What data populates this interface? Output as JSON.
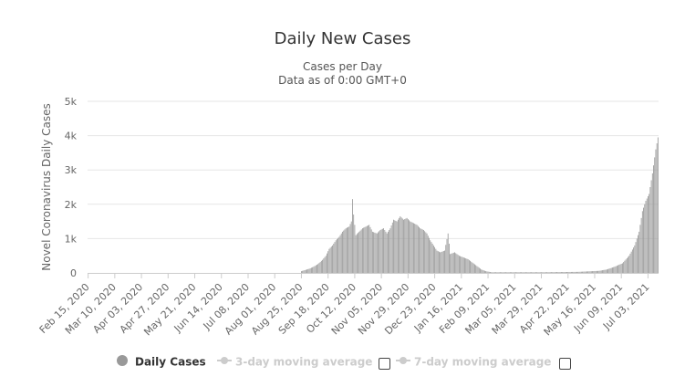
{
  "title": "Daily New Cases",
  "subtitle_line1": "Cases per Day",
  "subtitle_line2": "Data as of 0:00 GMT+0",
  "colors": {
    "bars": "#999999",
    "grid": "#e6e6e6",
    "axis_text": "#666666",
    "disabled": "#cccccc"
  },
  "legend": {
    "daily": "Daily Cases",
    "ma3": "3-day moving average",
    "ma7": "7-day moving average"
  },
  "chart_data": {
    "type": "bar",
    "title": "Daily New Cases",
    "subtitle": "Cases per Day / Data as of 0:00 GMT+0",
    "xlabel": "",
    "ylabel": "Novel Coronavirus Daily Cases",
    "ylim": [
      0,
      5000
    ],
    "yticks": [
      0,
      1000,
      2000,
      3000,
      4000,
      5000
    ],
    "ytick_labels": [
      "0",
      "1k",
      "2k",
      "3k",
      "4k",
      "5k"
    ],
    "x_tick_labels": [
      "Feb 15, 2020",
      "Mar 10, 2020",
      "Apr 03, 2020",
      "Apr 27, 2020",
      "May 21, 2020",
      "Jun 14, 2020",
      "Jul 08, 2020",
      "Aug 01, 2020",
      "Aug 25, 2020",
      "Sep 18, 2020",
      "Oct 12, 2020",
      "Nov 05, 2020",
      "Nov 29, 2020",
      "Dec 23, 2020",
      "Jan 16, 2021",
      "Feb 09, 2021",
      "Mar 05, 2021",
      "Mar 29, 2021",
      "Apr 22, 2021",
      "May 16, 2021",
      "Jun 09, 2021",
      "Jul 03, 2021"
    ],
    "x_start": "Feb 15, 2020",
    "x_end": "Jul 12, 2021",
    "grid": true,
    "legend_position": "bottom",
    "series": [
      {
        "name": "Daily Cases",
        "color": "#999999",
        "points": [
          [
            "Aug 25, 2020",
            50
          ],
          [
            "Aug 28, 2020",
            80
          ],
          [
            "Sep 01, 2020",
            120
          ],
          [
            "Sep 05, 2020",
            180
          ],
          [
            "Sep 09, 2020",
            260
          ],
          [
            "Sep 13, 2020",
            380
          ],
          [
            "Sep 16, 2020",
            500
          ],
          [
            "Sep 19, 2020",
            700
          ],
          [
            "Sep 22, 2020",
            800
          ],
          [
            "Sep 25, 2020",
            950
          ],
          [
            "Sep 28, 2020",
            1050
          ],
          [
            "Oct 01, 2020",
            1200
          ],
          [
            "Oct 04, 2020",
            1300
          ],
          [
            "Oct 07, 2020",
            1350
          ],
          [
            "Oct 09, 2020",
            1500
          ],
          [
            "Oct 10, 2020",
            2150
          ],
          [
            "Oct 11, 2020",
            1700
          ],
          [
            "Oct 13, 2020",
            1100
          ],
          [
            "Oct 16, 2020",
            1200
          ],
          [
            "Oct 19, 2020",
            1300
          ],
          [
            "Oct 22, 2020",
            1350
          ],
          [
            "Oct 25, 2020",
            1400
          ],
          [
            "Oct 28, 2020",
            1200
          ],
          [
            "Nov 01, 2020",
            1150
          ],
          [
            "Nov 04, 2020",
            1250
          ],
          [
            "Nov 07, 2020",
            1300
          ],
          [
            "Nov 10, 2020",
            1150
          ],
          [
            "Nov 13, 2020",
            1300
          ],
          [
            "Nov 16, 2020",
            1550
          ],
          [
            "Nov 19, 2020",
            1500
          ],
          [
            "Nov 22, 2020",
            1650
          ],
          [
            "Nov 25, 2020",
            1550
          ],
          [
            "Nov 28, 2020",
            1600
          ],
          [
            "Dec 01, 2020",
            1500
          ],
          [
            "Dec 04, 2020",
            1450
          ],
          [
            "Dec 07, 2020",
            1400
          ],
          [
            "Dec 10, 2020",
            1300
          ],
          [
            "Dec 13, 2020",
            1250
          ],
          [
            "Dec 16, 2020",
            1150
          ],
          [
            "Dec 19, 2020",
            950
          ],
          [
            "Dec 22, 2020",
            800
          ],
          [
            "Dec 25, 2020",
            650
          ],
          [
            "Dec 28, 2020",
            600
          ],
          [
            "Jan 01, 2021",
            650
          ],
          [
            "Jan 04, 2021",
            1150
          ],
          [
            "Jan 06, 2021",
            550
          ],
          [
            "Jan 10, 2021",
            600
          ],
          [
            "Jan 14, 2021",
            500
          ],
          [
            "Jan 18, 2021",
            450
          ],
          [
            "Jan 22, 2021",
            400
          ],
          [
            "Jan 26, 2021",
            300
          ],
          [
            "Jan 30, 2021",
            200
          ],
          [
            "Feb 03, 2021",
            100
          ],
          [
            "Feb 07, 2021",
            50
          ],
          [
            "Feb 12, 2021",
            20
          ],
          [
            "Mar 01, 2021",
            20
          ],
          [
            "Apr 01, 2021",
            20
          ],
          [
            "May 01, 2021",
            30
          ],
          [
            "May 20, 2021",
            60
          ],
          [
            "May 27, 2021",
            100
          ],
          [
            "Jun 03, 2021",
            180
          ],
          [
            "Jun 10, 2021",
            280
          ],
          [
            "Jun 16, 2021",
            500
          ],
          [
            "Jun 21, 2021",
            800
          ],
          [
            "Jun 25, 2021",
            1200
          ],
          [
            "Jun 28, 2021",
            1800
          ],
          [
            "Jul 01, 2021",
            2100
          ],
          [
            "Jul 04, 2021",
            2300
          ],
          [
            "Jul 07, 2021",
            2900
          ],
          [
            "Jul 10, 2021",
            3600
          ],
          [
            "Jul 12, 2021",
            3950
          ]
        ]
      }
    ]
  }
}
